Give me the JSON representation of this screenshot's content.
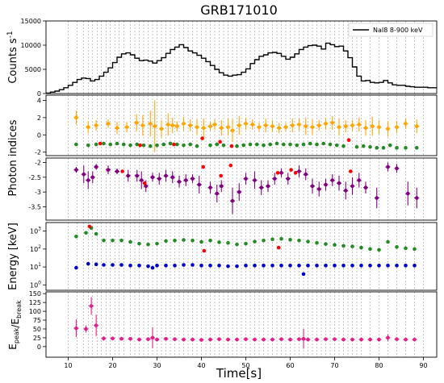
{
  "figure": {
    "title": "GRB171010",
    "xlabel": "Time[s]"
  },
  "chart_data": [
    {
      "type": "line",
      "panel": "counts",
      "ylabel": "Counts s",
      "ylabel_sup": "-1",
      "xlim": [
        5,
        93
      ],
      "ylim": [
        0,
        15000
      ],
      "yticks": [
        0,
        5000,
        10000,
        15000
      ],
      "grid": "vertical dashed lines at spectral bin edges",
      "legend": {
        "position": "top-right",
        "entries": [
          "NaI8 8-900 keV"
        ]
      },
      "series": [
        {
          "name": "NaI8 8-900 keV",
          "style": "step",
          "color": "#000000",
          "x": [
            5,
            6,
            7,
            8,
            9,
            10,
            11,
            12,
            13,
            14,
            15,
            16,
            17,
            18,
            19,
            20,
            21,
            22,
            23,
            24,
            25,
            26,
            27,
            28,
            29,
            30,
            31,
            32,
            33,
            34,
            35,
            36,
            37,
            38,
            39,
            40,
            41,
            42,
            43,
            44,
            45,
            46,
            47,
            48,
            49,
            50,
            51,
            52,
            53,
            54,
            55,
            56,
            57,
            58,
            59,
            60,
            61,
            62,
            63,
            64,
            65,
            66,
            67,
            68,
            69,
            70,
            71,
            72,
            73,
            74,
            75,
            76,
            77,
            78,
            79,
            80,
            81,
            82,
            83,
            84,
            85,
            86,
            87,
            88,
            89,
            90,
            91,
            92
          ],
          "y": [
            100,
            300,
            500,
            800,
            1200,
            1700,
            2300,
            2900,
            3200,
            3100,
            2600,
            2900,
            3600,
            4400,
            5300,
            6400,
            7500,
            8200,
            8400,
            8000,
            7300,
            6800,
            6900,
            6700,
            6300,
            6800,
            7400,
            8300,
            9100,
            9600,
            10100,
            9500,
            8800,
            8400,
            7900,
            7300,
            6600,
            5800,
            5000,
            4300,
            3800,
            3600,
            3800,
            3900,
            4400,
            5100,
            6200,
            7000,
            7700,
            8000,
            8400,
            8500,
            8300,
            7700,
            7100,
            7500,
            8200,
            9100,
            9600,
            9900,
            10000,
            9800,
            9200,
            10400,
            10100,
            9700,
            9800,
            8800,
            7400,
            5500,
            3600,
            2600,
            2700,
            2300,
            2200,
            2300,
            2700,
            2200,
            1800,
            1700,
            1700,
            1500,
            1400,
            1300,
            1300,
            1300,
            1200,
            1200
          ]
        }
      ]
    },
    {
      "type": "scatter",
      "panel": "photon-indices-upper",
      "ylabel": "Photon indices",
      "ylim": [
        -2.4,
        4.6
      ],
      "yticks": [
        -2,
        0,
        2,
        4
      ],
      "series": [
        {
          "color": "#ffa500",
          "x": [
            11.8,
            14.5,
            16.3,
            19,
            21,
            23.2,
            25.4,
            26.8,
            28.5,
            29.5,
            31,
            32.5,
            33.5,
            34.5,
            36,
            37.5,
            39,
            40.5,
            42,
            43,
            44.5,
            46,
            47,
            48.5,
            50,
            51.5,
            53,
            54.5,
            56,
            57.5,
            59,
            60.5,
            62,
            63.5,
            65,
            66.5,
            68,
            69.5,
            71,
            72.5,
            74,
            75.5,
            77,
            78.5,
            80,
            82,
            84,
            86,
            88.5
          ],
          "y": [
            2.0,
            0.9,
            1.1,
            1.3,
            0.8,
            0.9,
            1.4,
            1.1,
            1.3,
            1.0,
            0.7,
            1.2,
            1.1,
            1.0,
            1.3,
            1.1,
            0.9,
            0.8,
            1.0,
            1.2,
            0.8,
            0.9,
            0.5,
            1.1,
            1.3,
            1.2,
            0.9,
            1.1,
            1.0,
            0.8,
            0.9,
            1.1,
            1.2,
            1.0,
            0.9,
            1.1,
            1.3,
            1.4,
            0.9,
            1.0,
            1.1,
            1.2,
            0.8,
            1.0,
            0.9,
            0.7,
            0.9,
            1.3,
            1.0
          ],
          "yerr": [
            0.8,
            0.7,
            0.6,
            0.5,
            0.7,
            0.6,
            1.0,
            1.2,
            1.5,
            3.0,
            1.0,
            1.3,
            0.9,
            0.6,
            0.8,
            0.7,
            0.9,
            1.1,
            0.5,
            0.6,
            0.9,
            1.0,
            1.3,
            1.1,
            0.7,
            0.6,
            0.5,
            0.8,
            0.7,
            0.6,
            0.5,
            0.8,
            0.7,
            1.0,
            0.9,
            0.6,
            0.7,
            0.8,
            1.0,
            0.7,
            0.6,
            0.8,
            0.9,
            1.1,
            0.8,
            0.9,
            0.7,
            0.6,
            0.8
          ]
        },
        {
          "color": "#228b22",
          "x": [
            11.8,
            14.5,
            16.3,
            18,
            19.5,
            21,
            22.5,
            24,
            25.5,
            27,
            28.5,
            30,
            31.5,
            33,
            34.5,
            36,
            37.5,
            39,
            42,
            43.5,
            45,
            48,
            49.5,
            51,
            52.5,
            54,
            55.5,
            57,
            58.5,
            60,
            61.5,
            63,
            64.5,
            66,
            67.5,
            69,
            70.5,
            72,
            75,
            76.5,
            78,
            79.5,
            81,
            82.5,
            84,
            86,
            88.5
          ],
          "y": [
            -1.1,
            -1.2,
            -1.1,
            -1.0,
            -1.1,
            -1.0,
            -1.1,
            -1.2,
            -1.1,
            -1.2,
            -1.3,
            -1.2,
            -1.1,
            -1.0,
            -1.1,
            -1.2,
            -1.1,
            -1.3,
            -1.2,
            -1.1,
            -1.2,
            -1.3,
            -1.2,
            -1.1,
            -1.1,
            -1.2,
            -1.1,
            -1.0,
            -1.1,
            -1.1,
            -1.2,
            -1.1,
            -1.0,
            -1.1,
            -1.0,
            -1.1,
            -1.2,
            -1.3,
            -1.4,
            -1.3,
            -1.4,
            -1.5,
            -1.5,
            -1.2,
            -1.5,
            -1.5,
            -1.5
          ]
        },
        {
          "color": "#ff0000",
          "x": [
            17.2,
            26.2,
            33.8,
            40.2,
            44.2,
            46.8,
            73.2
          ],
          "y": [
            -1.0,
            -1.2,
            -1.1,
            -0.4,
            -0.8,
            -1.3,
            -0.6
          ]
        }
      ]
    },
    {
      "type": "scatter",
      "panel": "photon-indices-lower",
      "ylim": [
        -3.95,
        -1.85
      ],
      "yticks": [
        -2.0,
        -2.5,
        -3.0,
        -3.5
      ],
      "series": [
        {
          "color": "#800080",
          "x": [
            11.8,
            13.5,
            14.5,
            15.5,
            16.3,
            19,
            21,
            23.5,
            25.5,
            26.5,
            27.5,
            29,
            30.5,
            32,
            33.5,
            35,
            36.5,
            38,
            39.5,
            42,
            43.5,
            44.5,
            47,
            48.5,
            50,
            52,
            53.5,
            55,
            56.5,
            58,
            59.5,
            62,
            63.5,
            65,
            66.5,
            68,
            69.5,
            71,
            72.5,
            74,
            75.5,
            77,
            79.5,
            82,
            84,
            86.5,
            88.5
          ],
          "y": [
            -2.25,
            -2.4,
            -2.6,
            -2.5,
            -2.15,
            -2.25,
            -2.3,
            -2.45,
            -2.45,
            -2.6,
            -2.8,
            -2.5,
            -2.55,
            -2.45,
            -2.5,
            -2.65,
            -2.6,
            -2.55,
            -2.75,
            -2.85,
            -3.05,
            -2.8,
            -3.3,
            -3.0,
            -2.55,
            -2.6,
            -2.85,
            -2.8,
            -2.55,
            -2.35,
            -2.55,
            -2.3,
            -2.4,
            -2.8,
            -2.9,
            -2.75,
            -2.6,
            -2.7,
            -2.95,
            -2.8,
            -2.6,
            -2.85,
            -3.2,
            -2.15,
            -2.2,
            -3.05,
            -3.2
          ],
          "yerr": [
            0.1,
            0.3,
            0.3,
            0.2,
            0.1,
            0.15,
            0.1,
            0.2,
            0.2,
            0.3,
            0.2,
            0.15,
            0.2,
            0.2,
            0.2,
            0.2,
            0.2,
            0.15,
            0.3,
            0.2,
            0.3,
            0.2,
            0.45,
            0.3,
            0.2,
            0.3,
            0.25,
            0.2,
            0.2,
            0.15,
            0.2,
            0.2,
            0.2,
            0.25,
            0.25,
            0.2,
            0.2,
            0.25,
            0.3,
            0.3,
            0.25,
            0.2,
            0.35,
            0.15,
            0.15,
            0.4,
            0.35
          ]
        },
        {
          "color": "#ff0000",
          "x": [
            22.2,
            27.2,
            40.4,
            44.4,
            46.6,
            57.2,
            60.2,
            61.2,
            73.6
          ],
          "y": [
            -2.3,
            -2.7,
            -2.15,
            -2.45,
            -2.1,
            -2.35,
            -2.25,
            -2.35,
            -2.3
          ]
        }
      ]
    },
    {
      "type": "scatter",
      "panel": "energy",
      "ylabel": "Energy [keV]",
      "yscale": "log",
      "ylim": [
        0.5,
        3000
      ],
      "yticks": [
        1,
        10,
        100,
        1000
      ],
      "ytick_labels": [
        "10^0",
        "10^1",
        "10^2",
        "10^3"
      ],
      "series": [
        {
          "color": "#228b22",
          "x": [
            11.8,
            14,
            15.2,
            16.3,
            18,
            20,
            22,
            24,
            26,
            28,
            30,
            32,
            34,
            36,
            38,
            40,
            42,
            44,
            46,
            48,
            50,
            52,
            54,
            56,
            58,
            60,
            62,
            64,
            66,
            68,
            70,
            72,
            74,
            76,
            78,
            80,
            82,
            84,
            86,
            88
          ],
          "y": [
            500,
            800,
            1500,
            700,
            300,
            300,
            300,
            250,
            200,
            180,
            200,
            280,
            300,
            320,
            300,
            250,
            300,
            240,
            220,
            180,
            200,
            260,
            300,
            350,
            370,
            330,
            300,
            260,
            220,
            190,
            170,
            150,
            140,
            120,
            100,
            90,
            250,
            130,
            110,
            100
          ]
        },
        {
          "color": "#0000cd",
          "x": [
            11.8,
            14.5,
            16.3,
            18,
            20,
            22,
            24,
            26,
            28,
            29,
            30,
            32,
            34,
            36,
            38,
            40,
            42,
            44,
            46,
            48,
            50,
            52,
            54,
            56,
            58,
            60,
            62,
            63,
            64,
            66,
            68,
            70,
            72,
            74,
            76,
            78,
            80,
            82,
            84,
            86,
            88
          ],
          "y": [
            9,
            15,
            14,
            13,
            13,
            13,
            12,
            12,
            11,
            9,
            12,
            12,
            12,
            13,
            13,
            12,
            12,
            12,
            11,
            11,
            12,
            12,
            12,
            12,
            12,
            12,
            12,
            4,
            12,
            12,
            12,
            12,
            12,
            12,
            12,
            12,
            12,
            12,
            12,
            12,
            12
          ]
        },
        {
          "color": "#ff0000",
          "x": [
            14.8,
            40.6,
            57.4
          ],
          "y": [
            1800,
            80,
            120
          ]
        }
      ]
    },
    {
      "type": "scatter",
      "panel": "ratio",
      "ylabel": "E_peak/E_break",
      "ylim": [
        -30,
        155
      ],
      "yticks": [
        0,
        25,
        50,
        75,
        100,
        125,
        150
      ],
      "series": [
        {
          "color": "#e0218a",
          "x": [
            11.8,
            14,
            15.2,
            16.3,
            18,
            20,
            22,
            24,
            26,
            28,
            29,
            30,
            32,
            34,
            36,
            38,
            40,
            42,
            44,
            46,
            48,
            50,
            52,
            54,
            56,
            58,
            60,
            62,
            63,
            64,
            66,
            68,
            70,
            72,
            74,
            76,
            78,
            80,
            82,
            84,
            86,
            88
          ],
          "y": [
            52,
            50,
            115,
            60,
            23,
            23,
            22,
            22,
            20,
            21,
            25,
            20,
            22,
            21,
            20,
            20,
            19,
            20,
            21,
            20,
            20,
            21,
            20,
            20,
            20,
            21,
            20,
            21,
            22,
            20,
            20,
            21,
            21,
            20,
            20,
            20,
            20,
            20,
            25,
            21,
            20,
            20
          ],
          "yerr": [
            25,
            10,
            25,
            30,
            6,
            5,
            4,
            4,
            4,
            4,
            30,
            4,
            4,
            4,
            4,
            4,
            4,
            4,
            4,
            4,
            4,
            4,
            4,
            4,
            4,
            4,
            4,
            4,
            28,
            4,
            4,
            4,
            4,
            4,
            4,
            4,
            4,
            4,
            10,
            4,
            4,
            4
          ]
        }
      ]
    }
  ],
  "xaxis": {
    "xlim": [
      5,
      93
    ],
    "ticks": [
      10,
      20,
      30,
      40,
      50,
      60,
      70,
      80,
      90
    ]
  },
  "bin_edges": [
    10,
    12,
    13.5,
    14.5,
    15.5,
    16.5,
    17.5,
    18.5,
    19.5,
    20.5,
    21.5,
    22.5,
    24,
    25,
    26,
    27,
    28,
    29,
    30,
    31,
    32,
    33,
    34,
    35,
    36,
    37,
    38,
    39,
    40,
    41,
    42,
    43,
    44,
    45,
    46,
    47,
    48,
    49,
    50,
    51,
    52,
    53,
    54,
    55,
    56,
    57,
    58,
    59,
    60,
    61,
    62,
    63,
    64,
    65,
    66,
    67,
    68,
    69,
    70,
    71,
    72,
    73,
    74,
    75,
    76,
    78,
    80,
    82,
    84,
    86,
    88,
    90
  ]
}
